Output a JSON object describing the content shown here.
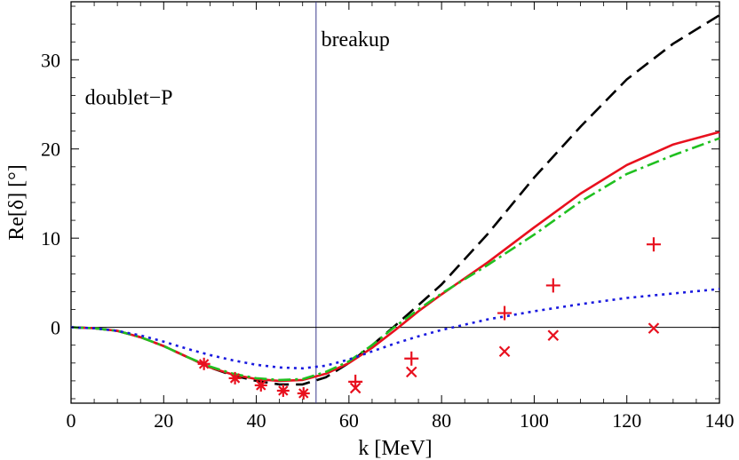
{
  "chart_data": {
    "type": "line",
    "title": "",
    "xlabel": "k [MeV]",
    "ylabel": "Re[δ] [°]",
    "xlim": [
      0,
      140
    ],
    "ylim": [
      -8.5,
      36.5
    ],
    "xticks": [
      0,
      20,
      40,
      60,
      80,
      100,
      120,
      140
    ],
    "yticks": [
      0,
      10,
      20,
      30
    ],
    "grid": false,
    "annotations": [
      {
        "text": "doublet−P",
        "x": 3,
        "y": 25
      },
      {
        "text": "breakup",
        "x": 54,
        "y": 31.5
      }
    ],
    "reference_lines": [
      {
        "name": "breakup",
        "orientation": "vertical",
        "value": 52.9,
        "color": "#3a3a8c"
      },
      {
        "name": "zero",
        "orientation": "horizontal",
        "value": 0,
        "color": "#000000"
      }
    ],
    "series": [
      {
        "name": "black dashed",
        "style": "dashed",
        "color": "#000000",
        "x": [
          0,
          5,
          10,
          15,
          20,
          25,
          30,
          35,
          40,
          45,
          50,
          55,
          60,
          65,
          70,
          75,
          80,
          90,
          100,
          110,
          120,
          130,
          140
        ],
        "y": [
          0,
          -0.1,
          -0.4,
          -1.1,
          -2.1,
          -3.3,
          -4.5,
          -5.4,
          -6.0,
          -6.4,
          -6.4,
          -5.6,
          -4.0,
          -2.0,
          0.2,
          2.5,
          4.8,
          10.5,
          16.8,
          22.5,
          27.8,
          31.8,
          35.0
        ]
      },
      {
        "name": "red solid",
        "style": "solid",
        "color": "#e8101e",
        "x": [
          0,
          5,
          10,
          15,
          20,
          25,
          30,
          35,
          40,
          45,
          50,
          55,
          60,
          65,
          70,
          75,
          80,
          90,
          100,
          110,
          120,
          130,
          140
        ],
        "y": [
          0,
          -0.1,
          -0.4,
          -1.1,
          -2.1,
          -3.3,
          -4.5,
          -5.3,
          -5.8,
          -6.0,
          -5.9,
          -5.2,
          -4.0,
          -2.3,
          -0.3,
          1.8,
          3.7,
          7.3,
          11.2,
          15.0,
          18.2,
          20.5,
          21.9
        ]
      },
      {
        "name": "green dash-dot",
        "style": "dashdot",
        "color": "#20c020",
        "x": [
          0,
          5,
          10,
          15,
          20,
          25,
          30,
          35,
          40,
          45,
          50,
          55,
          60,
          65,
          70,
          75,
          80,
          90,
          100,
          110,
          120,
          130,
          140
        ],
        "y": [
          0,
          -0.1,
          -0.4,
          -1.1,
          -2.1,
          -3.3,
          -4.4,
          -5.2,
          -5.7,
          -5.9,
          -5.8,
          -5.0,
          -3.8,
          -2.0,
          0.1,
          2.0,
          3.8,
          7.0,
          10.4,
          14.1,
          17.2,
          19.3,
          21.2
        ]
      },
      {
        "name": "blue dotted",
        "style": "dotted",
        "color": "#1a1adf",
        "x": [
          0,
          5,
          10,
          15,
          20,
          25,
          30,
          35,
          40,
          45,
          50,
          55,
          60,
          65,
          70,
          75,
          80,
          90,
          100,
          110,
          120,
          130,
          140
        ],
        "y": [
          0,
          -0.1,
          -0.4,
          -0.9,
          -1.6,
          -2.4,
          -3.1,
          -3.7,
          -4.2,
          -4.5,
          -4.6,
          -4.3,
          -3.6,
          -2.7,
          -1.8,
          -1.0,
          -0.3,
          0.9,
          1.8,
          2.6,
          3.3,
          3.8,
          4.3
        ]
      }
    ],
    "markers": [
      {
        "name": "asterisk points",
        "symbol": "asterisk",
        "color": "#e8101e",
        "x": [
          28.7,
          35.4,
          41.0,
          45.8,
          50.2
        ],
        "y": [
          -4.1,
          -5.7,
          -6.5,
          -7.1,
          -7.4
        ]
      },
      {
        "name": "plus points",
        "symbol": "plus",
        "color": "#e8101e",
        "x": [
          61.4,
          73.5,
          93.6,
          104.1,
          125.8
        ],
        "y": [
          -6.1,
          -3.5,
          1.6,
          4.7,
          9.3
        ]
      },
      {
        "name": "cross points",
        "symbol": "cross",
        "color": "#e8101e",
        "x": [
          61.4,
          73.5,
          93.6,
          104.1,
          125.8
        ],
        "y": [
          -6.8,
          -5.0,
          -2.7,
          -0.9,
          -0.1
        ]
      }
    ]
  }
}
